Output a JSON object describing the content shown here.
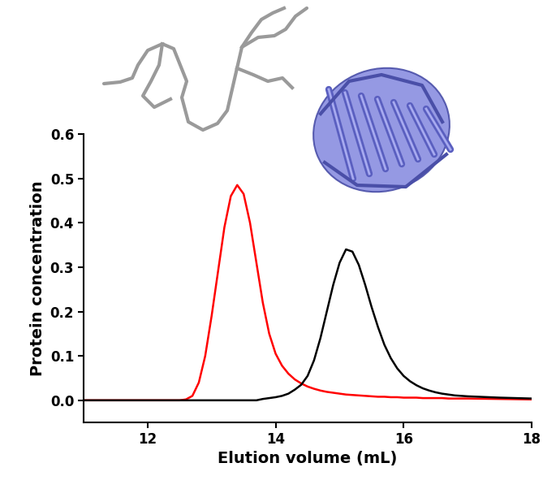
{
  "chart_data": {
    "type": "line",
    "x_label": "Elution volume (mL)",
    "y_label": "Protein concentration",
    "x": [
      11,
      12,
      12.5,
      12.6,
      12.7,
      12.8,
      12.9,
      13.0,
      13.1,
      13.2,
      13.3,
      13.4,
      13.5,
      13.6,
      13.7,
      13.8,
      13.9,
      14.0,
      14.1,
      14.2,
      14.3,
      14.4,
      14.5,
      14.6,
      14.7,
      14.8,
      14.9,
      15.0,
      15.1,
      15.2,
      15.3,
      15.4,
      15.5,
      15.6,
      15.7,
      15.8,
      15.9,
      16.0,
      16.1,
      16.2,
      16.3,
      16.4,
      16.5,
      16.6,
      16.7,
      16.8,
      16.9,
      17.0,
      17.5,
      18
    ],
    "series": [
      {
        "color": "#ff0000",
        "values": [
          0,
          0,
          0,
          0.002,
          0.01,
          0.04,
          0.1,
          0.19,
          0.29,
          0.39,
          0.46,
          0.485,
          0.465,
          0.4,
          0.31,
          0.22,
          0.15,
          0.105,
          0.078,
          0.06,
          0.047,
          0.038,
          0.031,
          0.026,
          0.022,
          0.019,
          0.017,
          0.015,
          0.013,
          0.012,
          0.011,
          0.01,
          0.009,
          0.008,
          0.008,
          0.007,
          0.007,
          0.006,
          0.006,
          0.006,
          0.005,
          0.005,
          0.005,
          0.005,
          0.004,
          0.004,
          0.004,
          0.004,
          0.003,
          0.002
        ]
      },
      {
        "color": "#000000",
        "values": [
          0,
          0,
          0,
          0,
          0,
          0,
          0,
          0,
          0,
          0,
          0,
          0,
          0,
          0,
          0,
          0.003,
          0.005,
          0.007,
          0.01,
          0.015,
          0.024,
          0.035,
          0.055,
          0.09,
          0.14,
          0.2,
          0.26,
          0.31,
          0.34,
          0.335,
          0.305,
          0.26,
          0.21,
          0.165,
          0.125,
          0.095,
          0.072,
          0.055,
          0.043,
          0.034,
          0.027,
          0.022,
          0.018,
          0.015,
          0.013,
          0.011,
          0.01,
          0.009,
          0.006,
          0.004
        ]
      }
    ],
    "xlim": [
      11,
      18
    ],
    "xticks": [
      12,
      14,
      16,
      18
    ],
    "ylim": [
      -0.05,
      0.6
    ],
    "yticks": [
      0.0,
      0.1,
      0.2,
      0.3,
      0.4,
      0.5,
      0.6
    ],
    "grid": false
  }
}
